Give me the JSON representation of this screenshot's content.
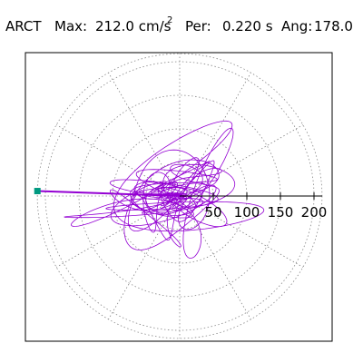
{
  "header": {
    "station": "ARCT",
    "max_label": "Max:",
    "max_value": "212.0 cm/s",
    "max_exponent": "2",
    "period_label": "Per:",
    "period_value": "0.220 s",
    "angle_label": "Ang:",
    "angle_value": "178.0"
  },
  "chart_data": {
    "type": "polar-hodogram",
    "max_amplitude": 212.0,
    "peak_angle_deg": 178.0,
    "rings": [
      50,
      100,
      150,
      200
    ],
    "radial_ticks": [
      "50",
      "100",
      "150",
      "200"
    ],
    "spokes_deg": [
      0,
      30,
      60,
      90,
      120,
      150,
      180,
      210,
      240,
      270,
      300,
      330
    ],
    "colors": {
      "trace": "#9400d3",
      "marker": "#009980",
      "grid": "#888888",
      "frame": "#000000"
    }
  }
}
